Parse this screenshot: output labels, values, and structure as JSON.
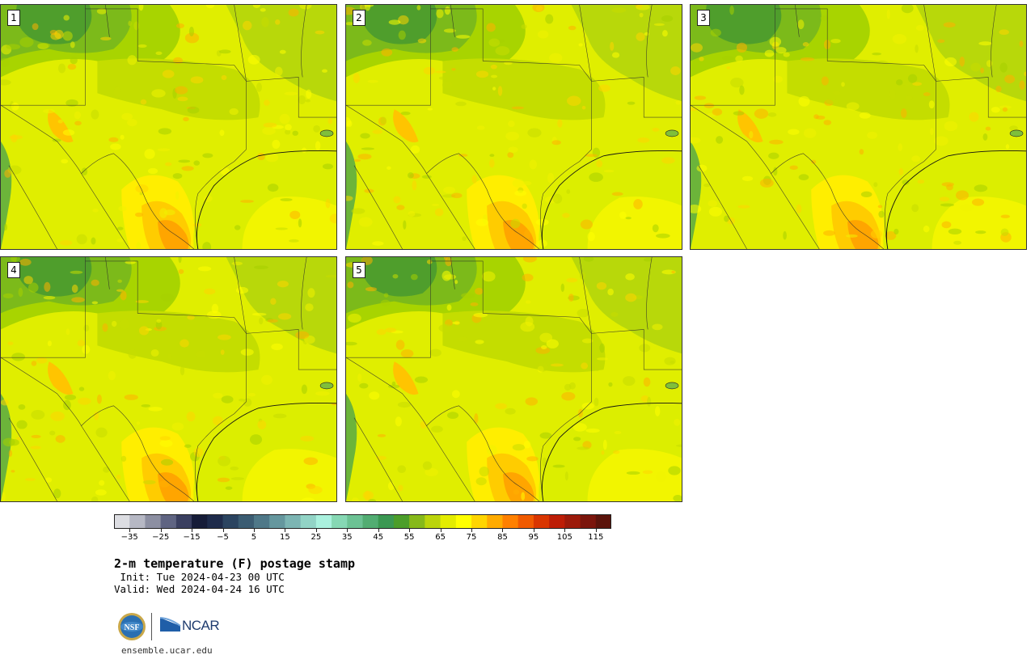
{
  "panels": [
    {
      "label": "1"
    },
    {
      "label": "2"
    },
    {
      "label": "3"
    },
    {
      "label": "4"
    },
    {
      "label": "5"
    }
  ],
  "colorbar": {
    "colors": [
      "#dcdde2",
      "#b6b8c4",
      "#8c8fa2",
      "#5f6482",
      "#3a3f60",
      "#161c38",
      "#1e2b4b",
      "#2b4460",
      "#3b5c72",
      "#4f7888",
      "#65979e",
      "#7cb5b3",
      "#92d4c6",
      "#aaf1de",
      "#86d8b4",
      "#6cc294",
      "#52ad72",
      "#3b9852",
      "#4c9e2a",
      "#86b91a",
      "#bbd40b",
      "#e3ec00",
      "#ffff00",
      "#ffd500",
      "#ffab00",
      "#ff8000",
      "#f05a00",
      "#d93500",
      "#bd1d06",
      "#9c1a0a",
      "#7b150c",
      "#5b130b"
    ],
    "ticks": [
      "−35",
      "−25",
      "−15",
      "−5",
      "5",
      "15",
      "25",
      "35",
      "45",
      "55",
      "65",
      "75",
      "85",
      "95",
      "105",
      "115"
    ],
    "tick_values": [
      -35,
      -25,
      -15,
      -5,
      5,
      15,
      25,
      35,
      45,
      55,
      65,
      75,
      85,
      95,
      105,
      115
    ],
    "min": -40,
    "max": 120
  },
  "title": "2-m temperature (F) postage stamp",
  "init": " Init: Tue 2024-04-23 00 UTC",
  "valid": "Valid: Wed 2024-04-24 16 UTC",
  "logos": {
    "nsf": "NSF",
    "ncar": "NCAR"
  },
  "site": "ensemble.ucar.edu"
}
